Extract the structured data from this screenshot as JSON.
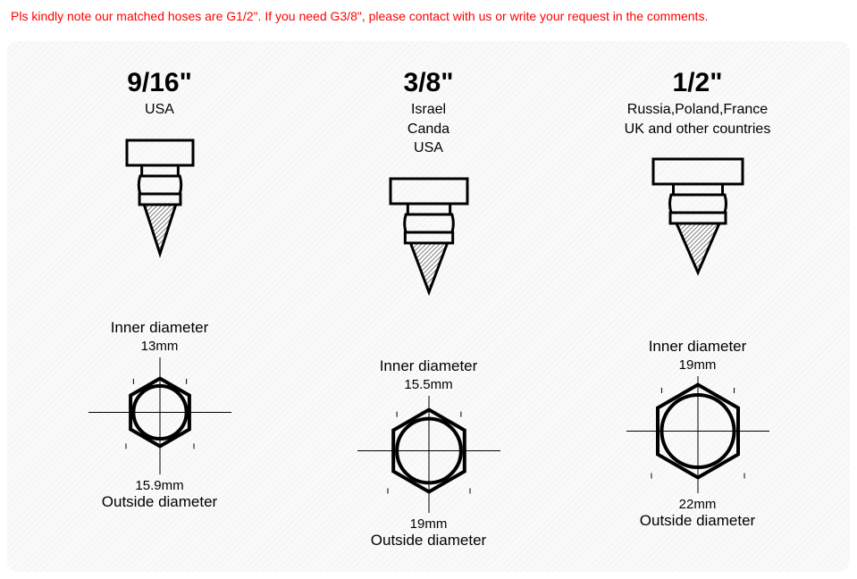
{
  "notice": {
    "text": "Pls kindly note our matched hoses are G1/2\". If you need G3/8\", please contact with us or write your request in the comments.",
    "color": "#ff0000",
    "font_size": 14
  },
  "background": {
    "stripe_color_a": "#f2f2f2",
    "stripe_color_b": "#fafafa",
    "border_radius": 12
  },
  "label_styles": {
    "size_title_fs": 30,
    "region_fs": 16,
    "inner_label_fs": 17,
    "inner_val_fs": 15,
    "outer_val_fs": 15,
    "outer_label_fs": 17,
    "text_color": "#000000"
  },
  "fitting_style": {
    "stroke": "#000000",
    "stroke_width": 3,
    "hatch_color": "#808080",
    "hatch_bg": "#ffffff"
  },
  "nut_style": {
    "stroke": "#000000",
    "stroke_width": 4,
    "cross_stroke": "#000000",
    "cross_width": 1,
    "tick_color": "#000000"
  },
  "connectors": [
    {
      "id": "c1",
      "size": "9/16\"",
      "regions": [
        "USA"
      ],
      "inner_label": "Inner diameter",
      "inner_value": "13mm",
      "outer_value": "15.9mm",
      "outer_label": "Outside diameter",
      "head_w": 74,
      "nut_r": 38
    },
    {
      "id": "c2",
      "size": "3/8\"",
      "regions": [
        "Israel",
        "Canda",
        "USA"
      ],
      "inner_label": "Inner diameter",
      "inner_value": "15.5mm",
      "outer_value": "19mm",
      "outer_label": "Outside diameter",
      "head_w": 86,
      "nut_r": 46
    },
    {
      "id": "c3",
      "size": "1/2\"",
      "regions": [
        "Russia,Poland,France",
        "UK and other countries"
      ],
      "inner_label": "Inner diameter",
      "inner_value": "19mm",
      "outer_value": "22mm",
      "outer_label": "Outside diameter",
      "head_w": 100,
      "nut_r": 52
    }
  ]
}
